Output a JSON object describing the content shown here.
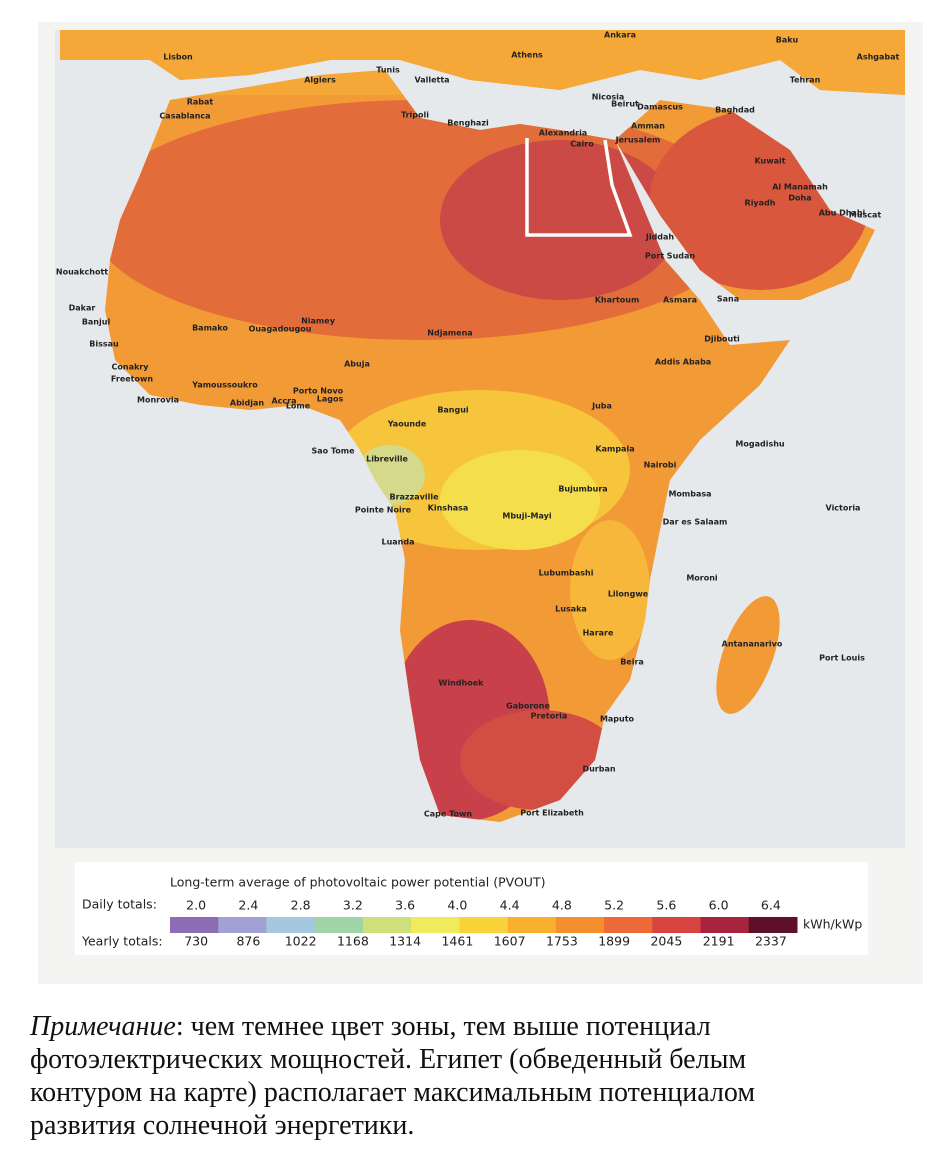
{
  "map": {
    "cities": [
      "Lisbon",
      "Algiers",
      "Tunis",
      "Valletta",
      "Athens",
      "Ankara",
      "Baku",
      "Ashgabat",
      "Tehran",
      "Rabat",
      "Casablanca",
      "Tripoli",
      "Benghazi",
      "Nicosia",
      "Beirut",
      "Damascus",
      "Baghdad",
      "Amman",
      "Jerusalem",
      "Alexandria",
      "Cairo",
      "Kuwait",
      "Al Manamah",
      "Doha",
      "Riyadh",
      "Abu Dhabi",
      "Muscat",
      "Jiddah",
      "Port Sudan",
      "Nouakchott",
      "Dakar",
      "Banjul",
      "Bissau",
      "Bamako",
      "Ouagadougou",
      "Niamey",
      "Ndjamena",
      "Khartoum",
      "Asmara",
      "Sana",
      "Djibouti",
      "Addis Ababa",
      "Conakry",
      "Freetown",
      "Monrovia",
      "Yamoussoukro",
      "Abidjan",
      "Accra",
      "Lome",
      "Porto Novo",
      "Lagos",
      "Abuja",
      "Mogadishu",
      "Juba",
      "Bangui",
      "Yaounde",
      "Sao Tome",
      "Libreville",
      "Brazzaville",
      "Pointe Noire",
      "Kinshasa",
      "Luanda",
      "Kampala",
      "Nairobi",
      "Bujumbura",
      "Mombasa",
      "Dar es Salaam",
      "Mbuji-Mayi",
      "Moroni",
      "Lubumbashi",
      "Lusaka",
      "Lilongwe",
      "Harare",
      "Antananarivo",
      "Port Louis",
      "Victoria",
      "Beira",
      "Windhoek",
      "Gaborone",
      "Pretoria",
      "Maputo",
      "Durban",
      "Cape Town",
      "Port Elizabeth"
    ]
  },
  "legend": {
    "title": "Long-term average of photovoltaic power potential (PVOUT)",
    "daily_label": "Daily totals:",
    "yearly_label": "Yearly totals:",
    "unit": "kWh/kWp",
    "daily": [
      "2.0",
      "2.4",
      "2.8",
      "3.2",
      "3.6",
      "4.0",
      "4.4",
      "4.8",
      "5.2",
      "5.6",
      "6.0",
      "6.4"
    ],
    "yearly": [
      730,
      876,
      1022,
      1168,
      1314,
      1461,
      1607,
      1753,
      1899,
      2045,
      2191,
      2337
    ],
    "colors": [
      "#8e6bb5",
      "#a3a0d3",
      "#a5c8df",
      "#9fd3a8",
      "#cfe07a",
      "#f1ea5c",
      "#fad33a",
      "#f9b02f",
      "#f48f30",
      "#ec6a37",
      "#d7433f",
      "#a8243e",
      "#5f0f2b"
    ]
  },
  "note": {
    "label": "Примечание",
    "lines": [
      ": чем темнее цвет зоны, тем выше потенциал",
      "фотоэлектрических мощностей. Египет (обведенный белым",
      "контуром на карте) располагает максимальным потенциалом",
      "развития солнечной энергетики."
    ]
  }
}
